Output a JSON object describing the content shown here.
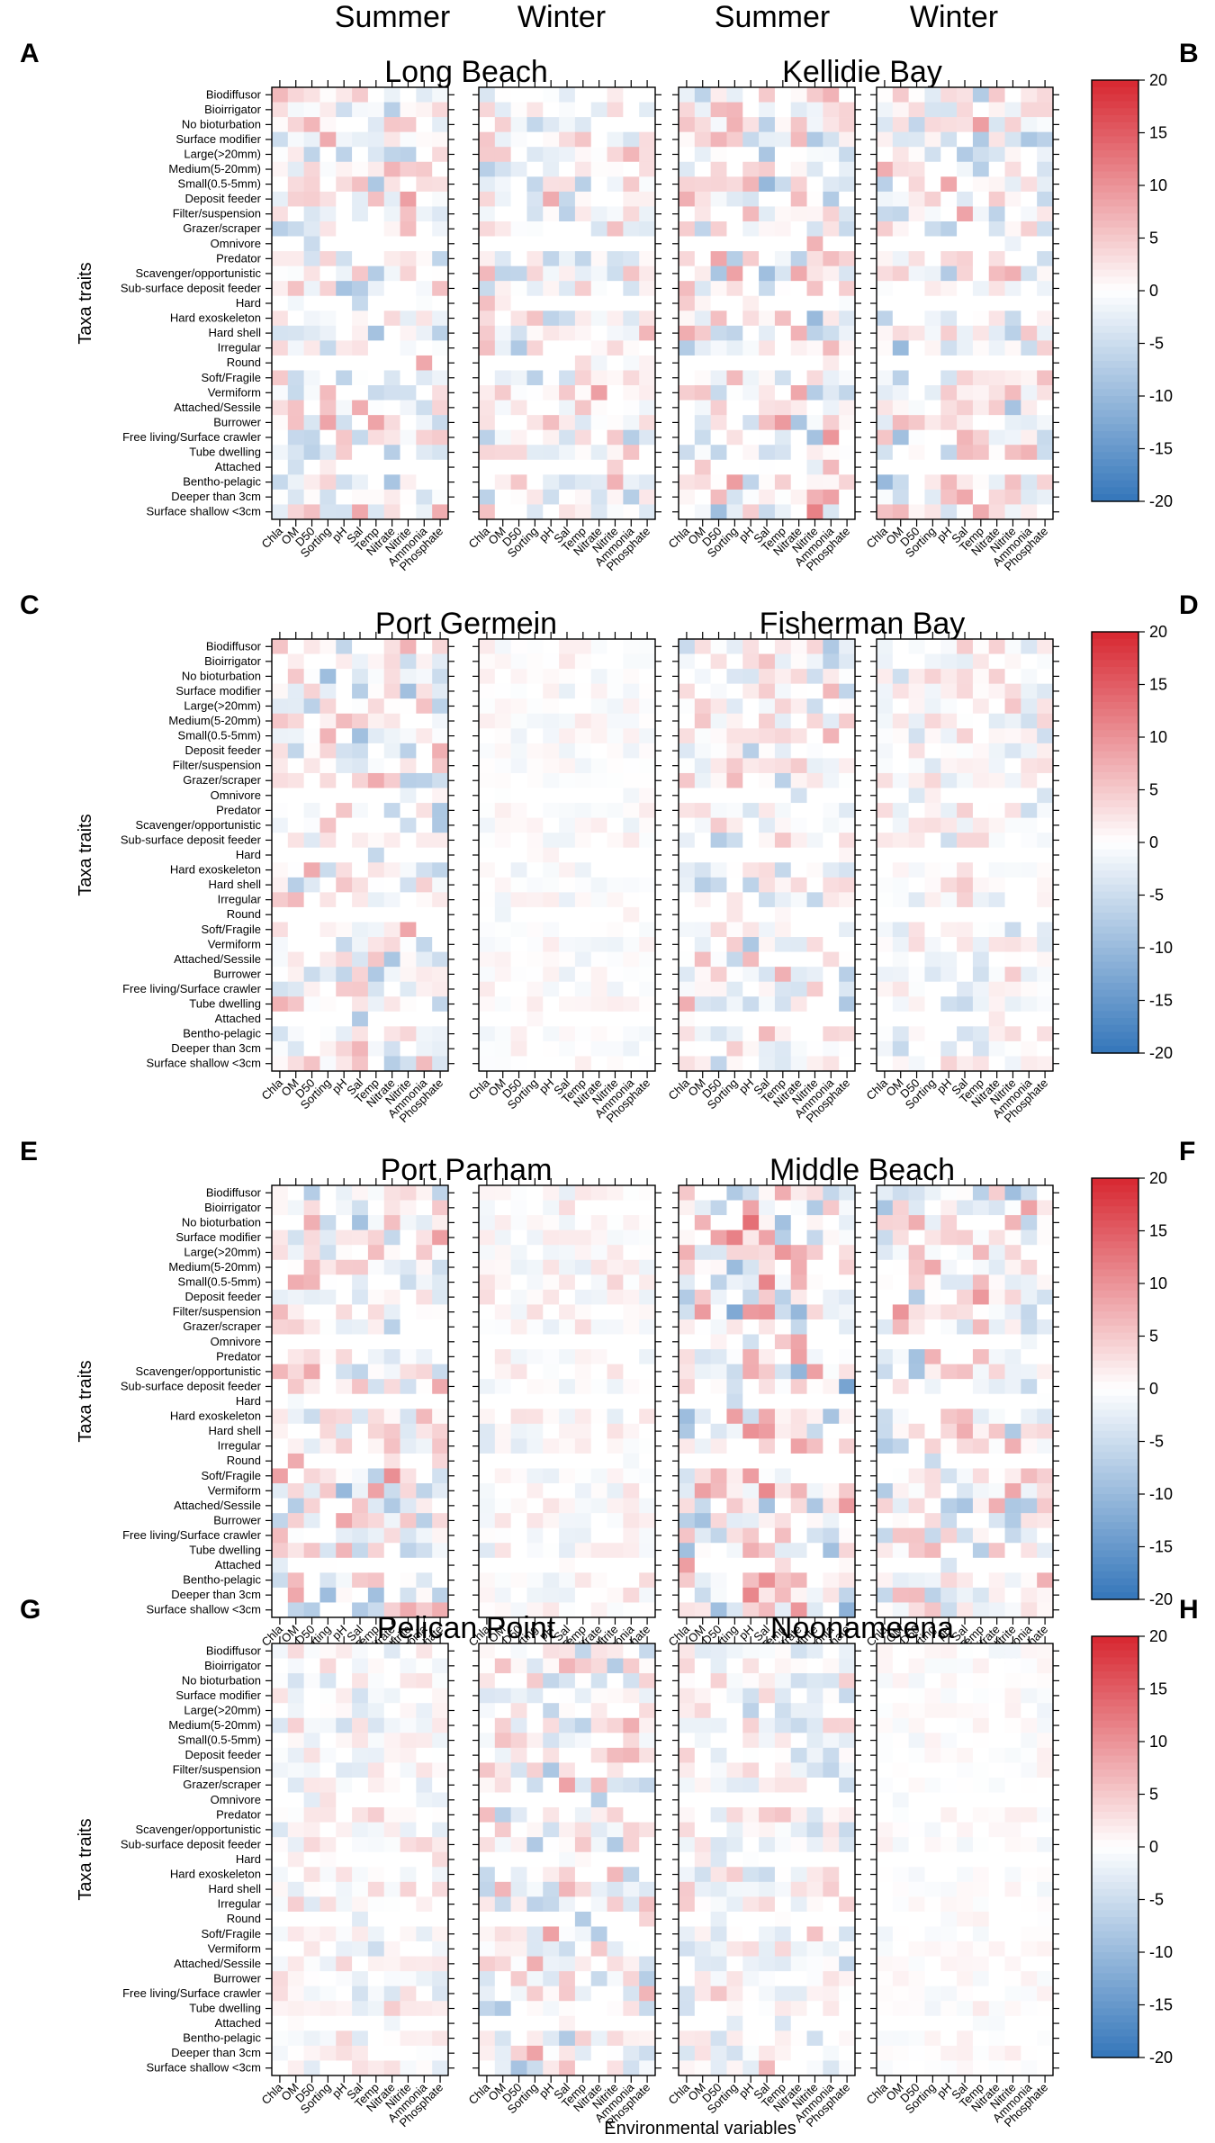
{
  "chart_data": {
    "type": "heatmap",
    "title": "",
    "season_headers": [
      "Summer",
      "Winter",
      "Summer",
      "Winter"
    ],
    "ylabel": "Taxa traits",
    "xlabel": "Environmental variables",
    "categories_x": [
      "Chla",
      "OM",
      "D50",
      "Sorting",
      "pH",
      "Sal",
      "Temp",
      "Nitrate",
      "Nitrite",
      "Ammonia",
      "Phosphate"
    ],
    "categories_y": [
      "Biodiffusor",
      "Bioirrigator",
      "No bioturbation",
      "Surface modifier",
      "Large(>20mm)",
      "Medium(5-20mm)",
      "Small(0.5-5mm)",
      "Deposit feeder",
      "Filter/suspension",
      "Grazer/scraper",
      "Omnivore",
      "Predator",
      "Scavenger/opportunistic",
      "Sub-surface deposit feeder",
      "Hard",
      "Hard exoskeleton",
      "Hard shell",
      "Irregular",
      "Round",
      "Soft/Fragile",
      "Vermiform",
      "Attached/Sessile",
      "Burrower",
      "Free living/Surface crawler",
      "Tube dwelling",
      "Attached",
      "Bentho-pelagic",
      "Deeper than 3cm",
      "Surface shallow <3cm"
    ],
    "colorbar": {
      "range": [
        -20,
        20
      ],
      "ticks": [
        "20",
        "15",
        "10",
        "5",
        "0",
        "-5",
        "-10",
        "-15",
        "-20"
      ],
      "colormap": "diverging blue-white-red"
    },
    "rows": [
      {
        "panel_left": "A",
        "panel_right": "B",
        "sites": [
          "Long Beach",
          "Kellidie Bay"
        ],
        "intensity": {
          "summer_left": 0.5,
          "winter_left": 0.45,
          "summer_right": 0.6,
          "winter_right": 0.55
        }
      },
      {
        "panel_left": "C",
        "panel_right": "D",
        "sites": [
          "Port Germein",
          "Fisherman Bay"
        ],
        "intensity": {
          "summer_left": 0.5,
          "winter_left": 0.12,
          "summer_right": 0.45,
          "winter_right": 0.3
        }
      },
      {
        "panel_left": "E",
        "panel_right": "F",
        "sites": [
          "Port Parham",
          "Middle Beach"
        ],
        "intensity": {
          "summer_left": 0.55,
          "winter_left": 0.2,
          "summer_right": 0.7,
          "winter_right": 0.5
        }
      },
      {
        "panel_left": "G",
        "panel_right": "H",
        "sites": [
          "Pelican Point",
          "Noonameena"
        ],
        "intensity": {
          "summer_left": 0.3,
          "winter_left": 0.5,
          "summer_right": 0.35,
          "winter_right": 0.1
        }
      }
    ]
  }
}
